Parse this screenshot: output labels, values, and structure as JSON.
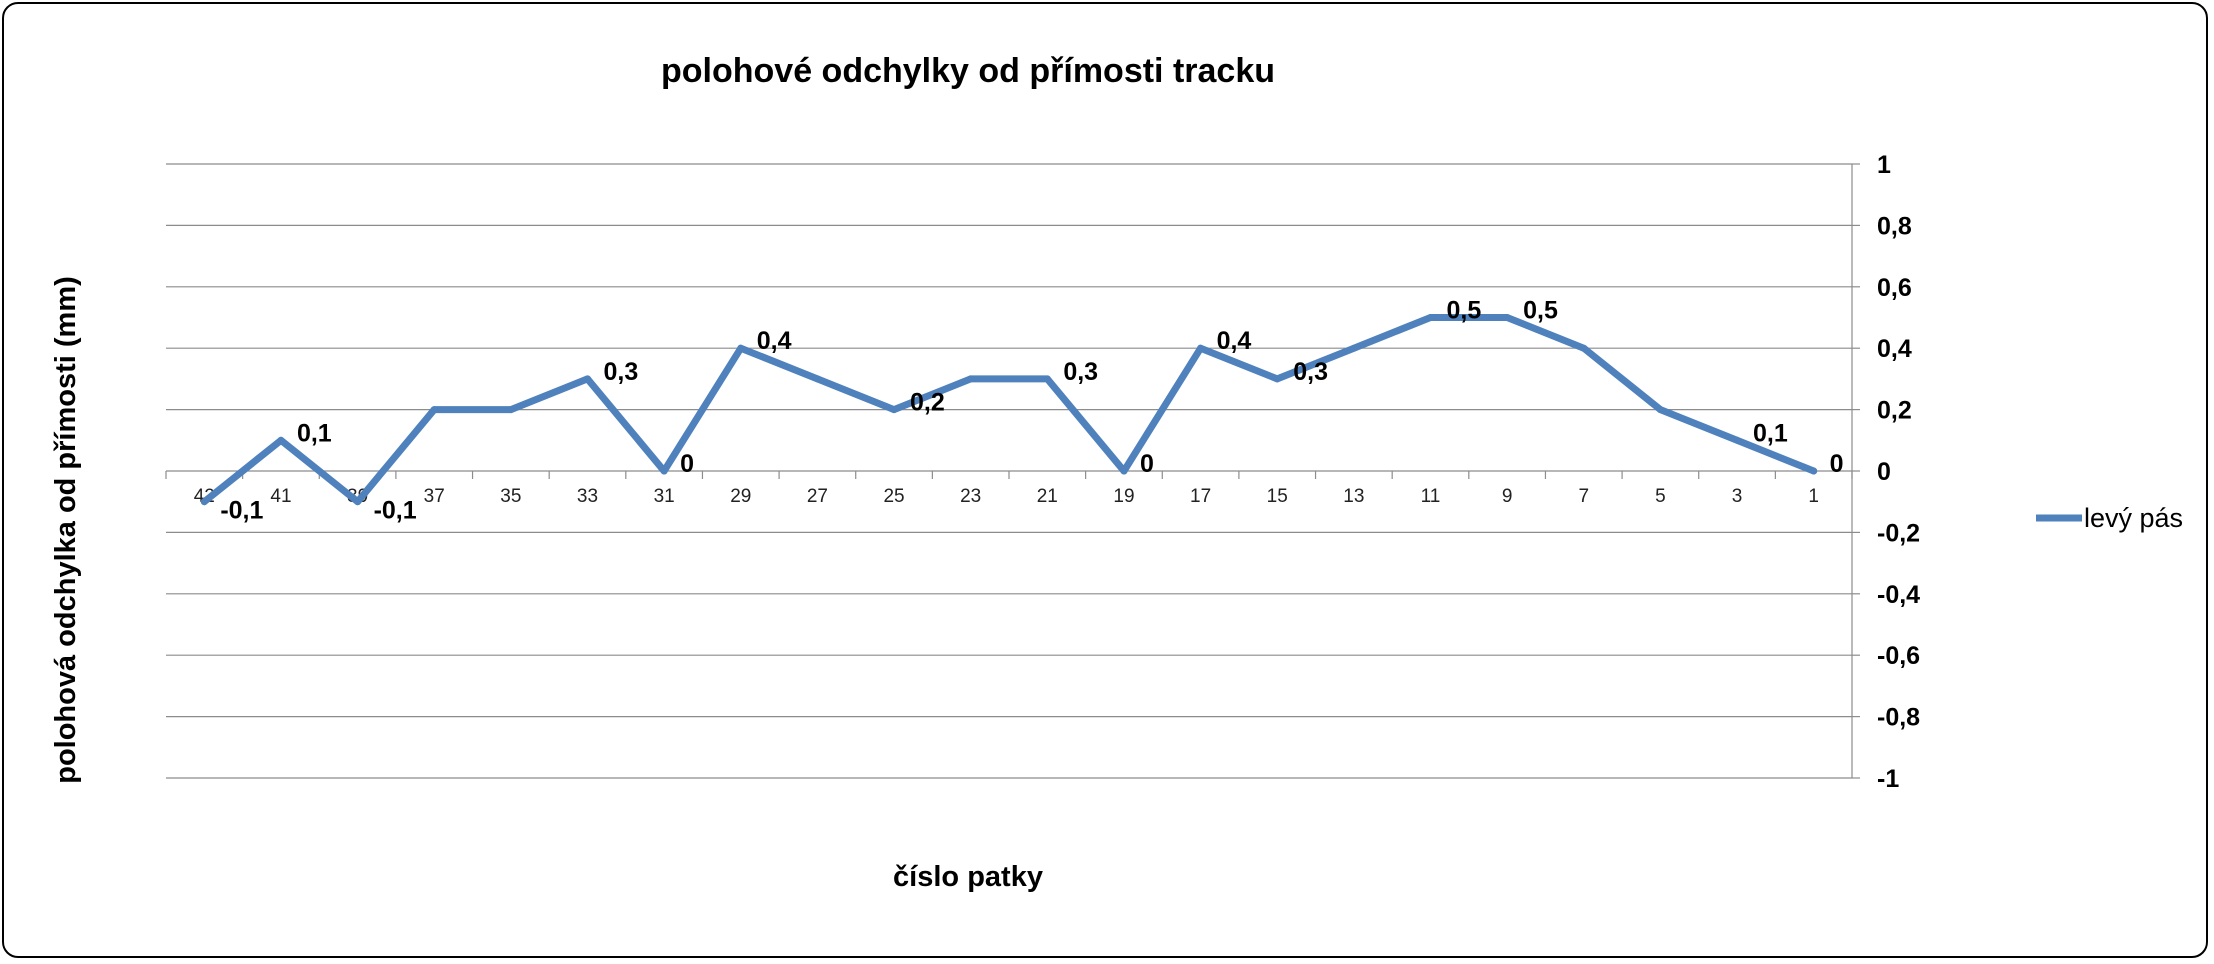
{
  "chart_data": {
    "type": "line",
    "title": "polohové odchylky od přímosti tracku",
    "xlabel": "číslo patky",
    "ylabel": "polohová odchylka od přímosti (mm)",
    "ylim": [
      -1,
      1
    ],
    "y_ticks": [
      1,
      0.8,
      0.6,
      0.4,
      0.2,
      0,
      -0.2,
      -0.4,
      -0.6,
      -0.8,
      -1
    ],
    "y_tick_labels": [
      "1",
      "0,8",
      "0,6",
      "0,4",
      "0,2",
      "0",
      "-0,2",
      "-0,4",
      "-0,6",
      "-0,8",
      "-1"
    ],
    "y_axis_side": "right",
    "x_reversed": true,
    "x": [
      42,
      41,
      39,
      37,
      35,
      33,
      31,
      29,
      27,
      25,
      23,
      21,
      19,
      17,
      15,
      13,
      11,
      9,
      7,
      5,
      3,
      1
    ],
    "x_tick_labels": [
      "42",
      "41",
      "39",
      "37",
      "35",
      "33",
      "31",
      "29",
      "27",
      "25",
      "23",
      "21",
      "19",
      "17",
      "15",
      "13",
      "11",
      "9",
      "7",
      "5",
      "3",
      "1"
    ],
    "grid": true,
    "legend_position": "right",
    "series": [
      {
        "name": "levý pás",
        "color": "#4f81bd",
        "values": [
          -0.1,
          0.1,
          -0.1,
          0.2,
          0.2,
          0.3,
          0,
          0.4,
          0.3,
          0.2,
          0.3,
          0.3,
          0,
          0.4,
          0.3,
          0.4,
          0.5,
          0.5,
          0.4,
          0.2,
          0.1,
          0
        ],
        "data_labels": [
          {
            "index": 0,
            "text": "-0,1"
          },
          {
            "index": 1,
            "text": "0,1"
          },
          {
            "index": 2,
            "text": "-0,1"
          },
          {
            "index": 5,
            "text": "0,3"
          },
          {
            "index": 6,
            "text": "0"
          },
          {
            "index": 7,
            "text": "0,4"
          },
          {
            "index": 9,
            "text": "0,2"
          },
          {
            "index": 11,
            "text": "0,3"
          },
          {
            "index": 12,
            "text": "0"
          },
          {
            "index": 13,
            "text": "0,4"
          },
          {
            "index": 14,
            "text": "0,3"
          },
          {
            "index": 16,
            "text": "0,5"
          },
          {
            "index": 17,
            "text": "0,5"
          },
          {
            "index": 20,
            "text": "0,1"
          },
          {
            "index": 21,
            "text": "0"
          }
        ]
      }
    ]
  }
}
